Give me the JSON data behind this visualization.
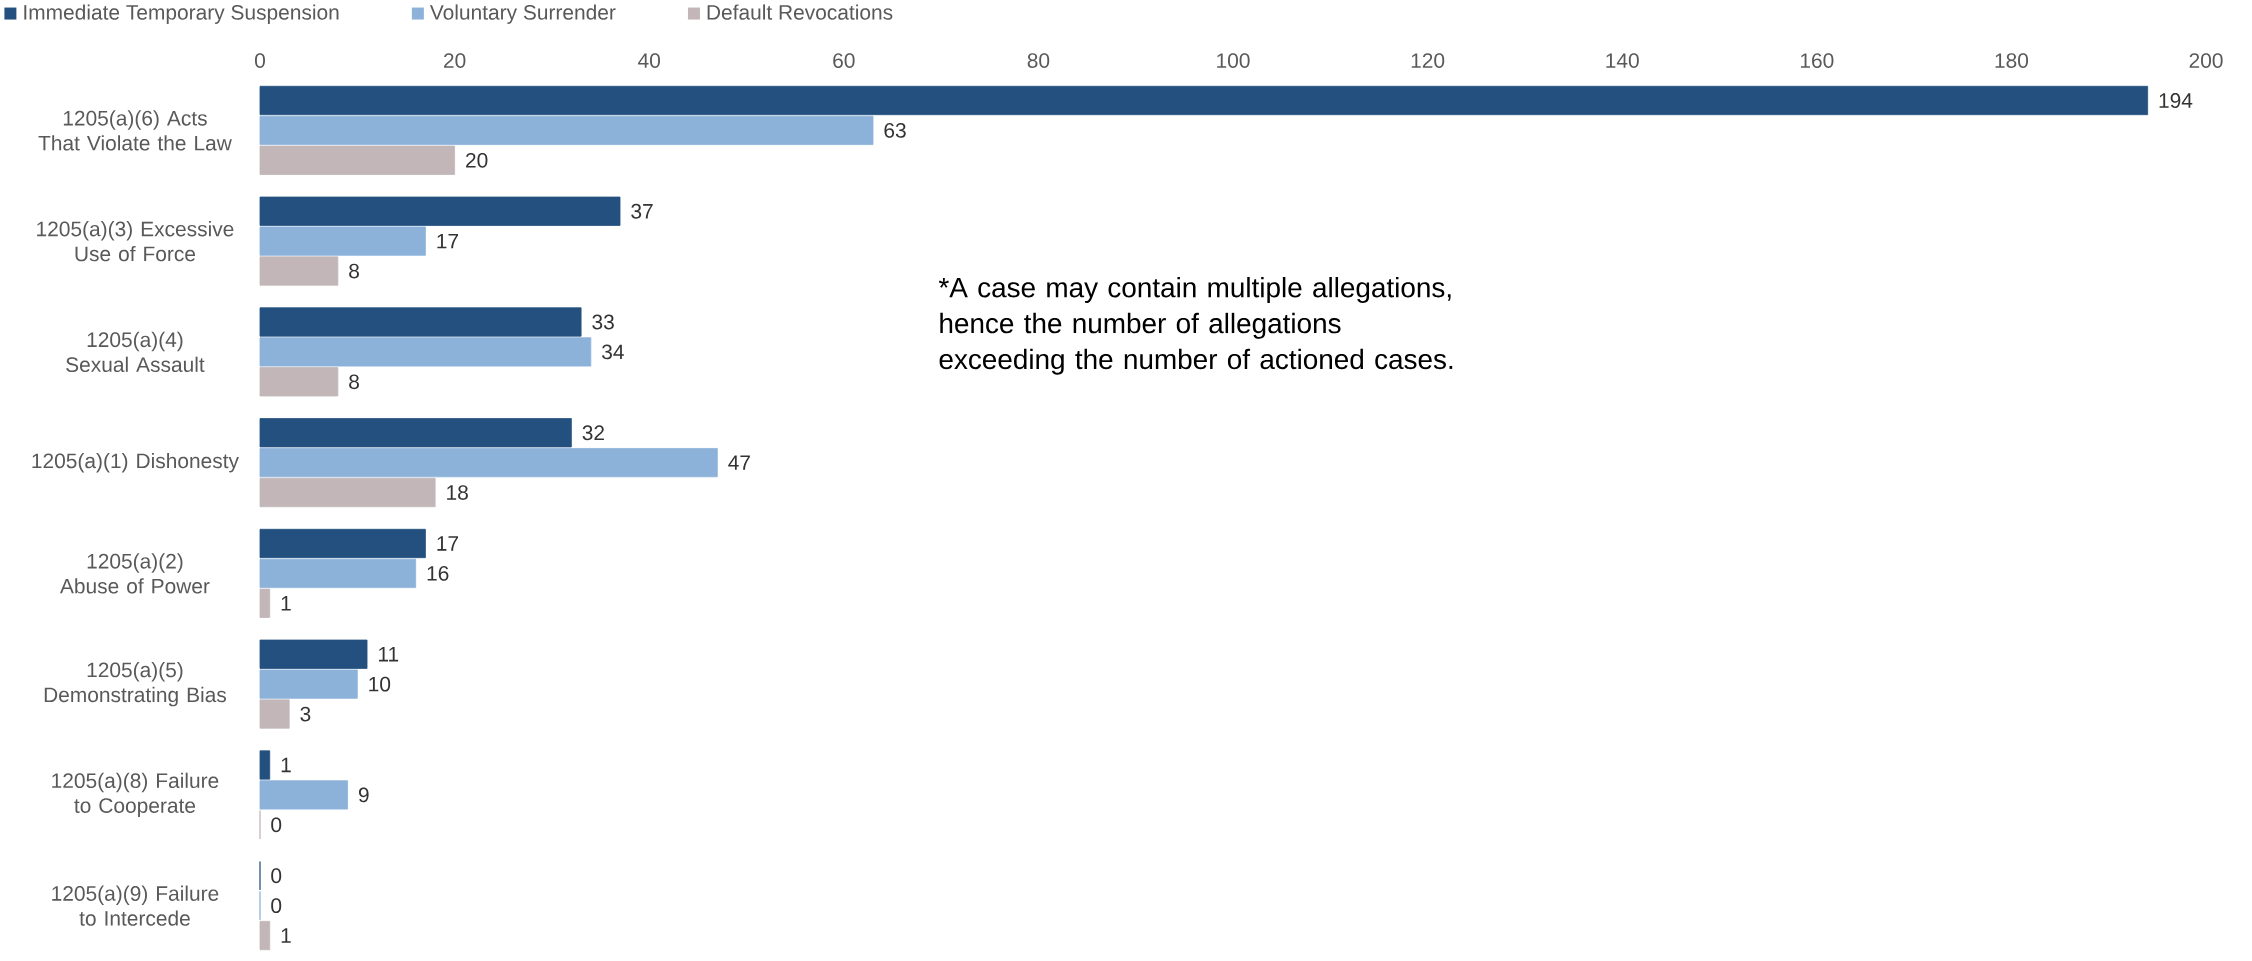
{
  "chart_data": {
    "type": "bar",
    "orientation": "horizontal",
    "categories": [
      "1205(a)(6) Acts That Violate the Law",
      "1205(a)(3) Excessive Use of Force",
      "1205(a)(4) Sexual Assault",
      "1205(a)(1) Dishonesty",
      "1205(a)(2) Abuse of Power",
      "1205(a)(5) Demonstrating Bias",
      "1205(a)(8) Failure to Cooperate",
      "1205(a)(9) Failure to Intercede"
    ],
    "series": [
      {
        "name": "Immediate Temporary Suspension",
        "color": "#24507f",
        "values": [
          194,
          37,
          33,
          32,
          17,
          11,
          1,
          0
        ]
      },
      {
        "name": "Voluntary Surrender",
        "color": "#8cb2da",
        "values": [
          63,
          17,
          34,
          47,
          16,
          10,
          9,
          0
        ]
      },
      {
        "name": "Default Revocations",
        "color": "#c2b6b8",
        "values": [
          20,
          8,
          8,
          18,
          1,
          3,
          0,
          1
        ]
      }
    ],
    "xlim": [
      0,
      200
    ],
    "xticks": [
      0,
      20,
      40,
      60,
      80,
      100,
      120,
      140,
      160,
      180,
      200
    ],
    "data_labels": true,
    "legend": "top left",
    "annotations": [
      "*A case may contain multiple allegations, hence the number of allegations exceeding the number of actioned cases."
    ]
  }
}
